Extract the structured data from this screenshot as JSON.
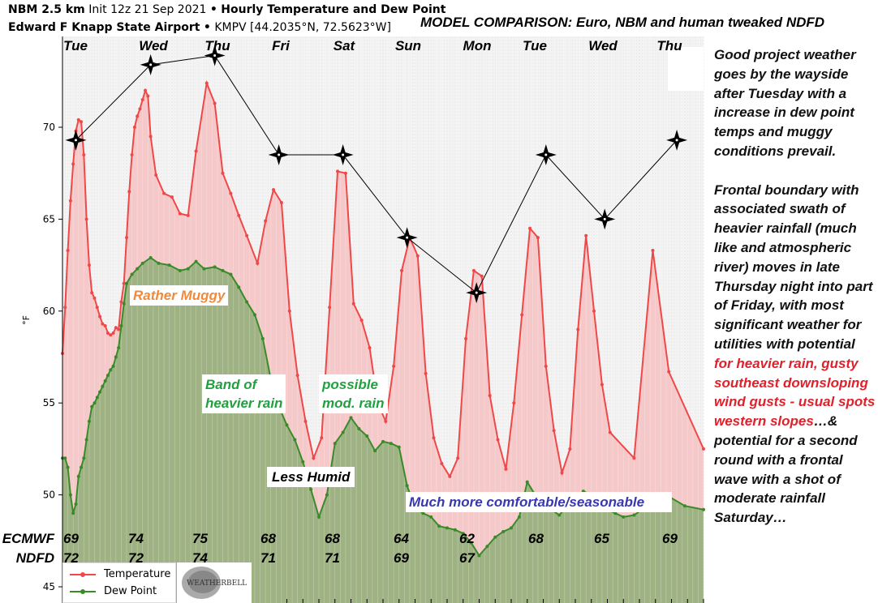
{
  "header": {
    "line1_bold": "NBM 2.5 km",
    "line1_init": "Init 12z 21 Sep 2021",
    "line1_sep": "•",
    "line1_title": "Hourly Temperature and Dew Point",
    "line2_bold": "Edward F Knapp State Airport",
    "line2_sep": "•",
    "line2_station": "KMPV [44.2035°N, 72.5623°W]"
  },
  "comparison_title": "MODEL COMPARISON: Euro, NBM and human tweaked NDFD",
  "notes": {
    "p1": "Good project weather goes by the wayside after Tuesday with a increase in dew point temps and muggy conditions prevail.",
    "p2a": "Frontal boundary with associated swath of heavier rainfall (much like and atmospheric river) moves in late Thursday night into part of Friday, with most significant weather for utilities with potential ",
    "p2b": "for heavier rain, gusty southeast downsloping wind gusts - usual spots western slopes",
    "p2c": "…& potential for a second round with a frontal wave with a shot of moderate rainfall Saturday…"
  },
  "annotations": {
    "muggy": "Rather Muggy",
    "band1": "Band of",
    "band2": "heavier rain",
    "mod1": "possible",
    "mod2": "mod. rain",
    "less_humid": "Less Humid",
    "comfortable": "Much more comfortable/seasonable"
  },
  "models": {
    "ecmwf_label": "ECMWF",
    "ndfd_label": "NDFD",
    "ecmwf": [
      "69",
      "74",
      "75",
      "68",
      "68",
      "64",
      "62",
      "68",
      "65",
      "69"
    ],
    "ndfd": [
      "72",
      "72",
      "74",
      "71",
      "71",
      "69",
      "67",
      "",
      "",
      ""
    ]
  },
  "legend": {
    "temperature": "Temperature",
    "dew_point": "Dew Point"
  },
  "logo_text": "WeatherBELL",
  "colors": {
    "temp": "#f04848",
    "dew": "#3a8a2a",
    "temp_fill": "#f5c9c9",
    "dew_fill": "#9fb283",
    "bg": "#f3f3f3"
  },
  "chart_data": {
    "type": "line",
    "ylabel": "°F",
    "ylim": [
      44.1,
      75.2
    ],
    "xlim_hours": [
      0,
      240
    ],
    "yticks": [
      "45",
      "50",
      "55",
      "60",
      "65",
      "70"
    ],
    "days": [
      "Tue",
      "Wed",
      "Thu",
      "Fri",
      "Sat",
      "Sun",
      "Mon",
      "Tue",
      "Wed",
      "Thu"
    ],
    "day_hours": [
      5,
      34,
      58,
      82,
      106,
      130,
      156,
      177,
      203,
      228
    ],
    "series": [
      {
        "name": "Temperature",
        "points": [
          [
            0,
            57.7
          ],
          [
            1,
            60.2
          ],
          [
            2,
            63.3
          ],
          [
            3,
            66
          ],
          [
            4,
            68
          ],
          [
            5,
            69.8
          ],
          [
            6,
            70.4
          ],
          [
            7,
            70.3
          ],
          [
            8,
            68.5
          ],
          [
            9,
            65
          ],
          [
            10,
            62.5
          ],
          [
            11,
            61
          ],
          [
            12,
            60.7
          ],
          [
            13,
            60.2
          ],
          [
            14,
            59.7
          ],
          [
            15,
            59.3
          ],
          [
            16,
            59.2
          ],
          [
            17,
            58.8
          ],
          [
            18,
            58.7
          ],
          [
            19,
            58.8
          ],
          [
            20,
            59.1
          ],
          [
            21,
            59
          ],
          [
            22,
            60.5
          ],
          [
            23,
            61.5
          ],
          [
            24,
            64
          ],
          [
            25,
            66.5
          ],
          [
            26,
            68.5
          ],
          [
            27,
            70
          ],
          [
            28,
            70.6
          ],
          [
            29,
            71
          ],
          [
            30,
            71.5
          ],
          [
            31,
            72
          ],
          [
            32,
            71.7
          ],
          [
            33,
            69.5
          ],
          [
            35,
            67.4
          ],
          [
            38,
            66.4
          ],
          [
            41,
            66.2
          ],
          [
            44,
            65.3
          ],
          [
            47,
            65.2
          ],
          [
            50,
            68.7
          ],
          [
            54,
            72.4
          ],
          [
            57,
            71.3
          ],
          [
            60,
            67.5
          ],
          [
            63,
            66.4
          ],
          [
            66,
            65.2
          ],
          [
            69,
            64.1
          ],
          [
            73,
            62.6
          ],
          [
            76,
            64.9
          ],
          [
            79,
            66.6
          ],
          [
            82,
            65.9
          ],
          [
            85,
            60
          ],
          [
            88,
            56.5
          ],
          [
            91,
            54
          ],
          [
            94,
            52
          ],
          [
            97,
            53.1
          ],
          [
            100,
            60.2
          ],
          [
            103,
            67.6
          ],
          [
            106,
            67.5
          ],
          [
            109,
            60.4
          ],
          [
            112,
            59.5
          ],
          [
            115,
            58
          ],
          [
            118,
            55
          ],
          [
            121,
            54
          ],
          [
            124,
            57
          ],
          [
            127,
            62.2
          ],
          [
            130,
            64
          ],
          [
            133,
            63
          ],
          [
            136,
            56.6
          ],
          [
            139,
            53.1
          ],
          [
            142,
            51.7
          ],
          [
            145,
            51
          ],
          [
            148,
            52
          ],
          [
            151,
            58.5
          ],
          [
            154,
            62.2
          ],
          [
            157,
            61.9
          ],
          [
            160,
            55.4
          ],
          [
            163,
            53
          ],
          [
            166,
            51.4
          ],
          [
            169,
            55
          ],
          [
            172,
            59.8
          ],
          [
            175,
            64.5
          ],
          [
            178,
            64
          ],
          [
            181,
            57
          ],
          [
            184,
            53.5
          ],
          [
            187,
            51.2
          ],
          [
            190,
            52.5
          ],
          [
            193,
            59
          ],
          [
            196,
            64.1
          ],
          [
            199,
            60
          ],
          [
            202,
            56
          ],
          [
            205,
            53.4
          ],
          [
            214,
            52
          ],
          [
            221,
            63.3
          ],
          [
            227,
            56.7
          ],
          [
            240,
            52.5
          ]
        ]
      },
      {
        "name": "Dew Point",
        "points": [
          [
            0,
            52
          ],
          [
            1,
            52
          ],
          [
            2,
            51.5
          ],
          [
            3,
            50
          ],
          [
            4,
            49
          ],
          [
            5,
            49.5
          ],
          [
            6,
            51
          ],
          [
            7,
            51.5
          ],
          [
            8,
            52
          ],
          [
            9,
            53
          ],
          [
            10,
            54
          ],
          [
            11,
            54.8
          ],
          [
            12,
            55
          ],
          [
            13,
            55.3
          ],
          [
            14,
            55.6
          ],
          [
            15,
            55.9
          ],
          [
            16,
            56.2
          ],
          [
            17,
            56.5
          ],
          [
            18,
            56.8
          ],
          [
            19,
            57
          ],
          [
            20,
            57.5
          ],
          [
            21,
            58
          ],
          [
            22,
            59.2
          ],
          [
            23,
            60.4
          ],
          [
            24,
            61.5
          ],
          [
            26,
            62
          ],
          [
            28,
            62.3
          ],
          [
            30,
            62.6
          ],
          [
            33,
            62.9
          ],
          [
            36,
            62.6
          ],
          [
            40,
            62.5
          ],
          [
            44,
            62.2
          ],
          [
            47,
            62.3
          ],
          [
            50,
            62.7
          ],
          [
            53,
            62.3
          ],
          [
            57,
            62.4
          ],
          [
            60,
            62.2
          ],
          [
            63,
            62
          ],
          [
            66,
            61.3
          ],
          [
            69,
            60.5
          ],
          [
            72,
            59.8
          ],
          [
            75,
            58.5
          ],
          [
            78,
            56.3
          ],
          [
            81,
            54.8
          ],
          [
            84,
            53.8
          ],
          [
            87,
            53
          ],
          [
            90,
            51.8
          ],
          [
            93,
            50.3
          ],
          [
            96,
            48.8
          ],
          [
            99,
            50
          ],
          [
            102,
            52.8
          ],
          [
            105,
            53.4
          ],
          [
            108,
            54.2
          ],
          [
            111,
            53.6
          ],
          [
            114,
            53.2
          ],
          [
            117,
            52.4
          ],
          [
            120,
            52.9
          ],
          [
            123,
            52.8
          ],
          [
            126,
            52.6
          ],
          [
            129,
            50.5
          ],
          [
            132,
            49.3
          ],
          [
            135,
            49
          ],
          [
            138,
            48.8
          ],
          [
            141,
            48.3
          ],
          [
            144,
            48.2
          ],
          [
            147,
            48.1
          ],
          [
            150,
            47.9
          ],
          [
            153,
            47.4
          ],
          [
            156,
            46.7
          ],
          [
            159,
            47.2
          ],
          [
            162,
            47.7
          ],
          [
            165,
            48
          ],
          [
            168,
            48.2
          ],
          [
            171,
            48.8
          ],
          [
            174,
            50.7
          ],
          [
            177,
            50
          ],
          [
            180,
            49.5
          ],
          [
            183,
            49.2
          ],
          [
            186,
            48.9
          ],
          [
            189,
            49.4
          ],
          [
            192,
            49.6
          ],
          [
            195,
            50.2
          ],
          [
            198,
            50
          ],
          [
            201,
            49.6
          ],
          [
            204,
            49.2
          ],
          [
            207,
            49
          ],
          [
            210,
            48.8
          ],
          [
            214,
            48.9
          ],
          [
            220,
            49.5
          ],
          [
            226,
            50
          ],
          [
            233,
            49.4
          ],
          [
            240,
            49.2
          ]
        ]
      },
      {
        "name": "Model comparison",
        "points": [
          [
            5,
            69.3
          ],
          [
            33,
            73.4
          ],
          [
            57,
            73.9
          ],
          [
            81,
            68.5
          ],
          [
            105,
            68.5
          ],
          [
            129,
            64
          ],
          [
            155,
            61
          ],
          [
            181,
            68.5
          ],
          [
            203,
            65
          ],
          [
            230,
            69.3
          ]
        ]
      }
    ]
  }
}
